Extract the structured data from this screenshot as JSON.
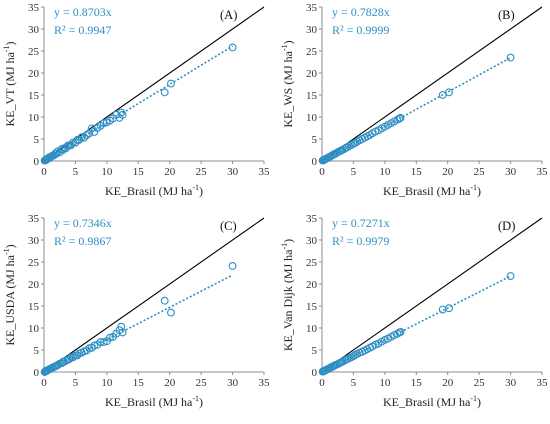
{
  "colors": {
    "marker": "#2E8FC4",
    "trend": "#2E8FC4",
    "identity": "#000000",
    "equation_text": "#2E8FC4"
  },
  "chart_data": [
    {
      "type": "scatter",
      "panel": "(A)",
      "xlabel": "KE_Brasil (MJ ha",
      "ylabel": "KE_VT (MJ ha",
      "unit_sup": "-1",
      "unit_close": ")",
      "xlim": [
        0,
        35
      ],
      "ylim": [
        0,
        35
      ],
      "xticks": [
        0,
        5,
        10,
        15,
        20,
        25,
        30,
        35
      ],
      "yticks": [
        0,
        5,
        10,
        15,
        20,
        25,
        30,
        35
      ],
      "slope": 0.8703,
      "equation": "y = 0.8703x",
      "r2": "R² = 0.9947",
      "grid": false,
      "series": [
        {
          "x": [
            0.1,
            0.2,
            0.3,
            0.4,
            0.5,
            0.6,
            0.8,
            1.0,
            1.2,
            1.4,
            1.6,
            1.8,
            2.0,
            2.2,
            2.5,
            2.8,
            3.0,
            3.2,
            3.5,
            3.8,
            4.0,
            4.3,
            4.6,
            5.0,
            5.3,
            5.6,
            6.0,
            6.4,
            6.8,
            7.2,
            7.6,
            8.0,
            8.5,
            9.0,
            9.5,
            10.0,
            10.5,
            11.0,
            11.5,
            12.0,
            12.3,
            12.5,
            19.2,
            20.2,
            30.0
          ],
          "y": [
            0.1,
            0.2,
            0.2,
            0.4,
            0.4,
            0.5,
            0.8,
            0.8,
            1.1,
            1.2,
            1.3,
            1.7,
            1.7,
            2.2,
            2.0,
            2.7,
            2.5,
            2.9,
            2.9,
            3.5,
            3.5,
            3.6,
            4.2,
            4.2,
            4.8,
            4.8,
            5.4,
            5.3,
            5.9,
            6.3,
            7.4,
            6.6,
            7.5,
            8.0,
            8.6,
            8.8,
            9.2,
            9.7,
            10.5,
            9.8,
            11.0,
            10.5,
            15.6,
            17.6,
            25.8
          ]
        }
      ]
    },
    {
      "type": "scatter",
      "panel": "(B)",
      "xlabel": "KE_Brasil (MJ ha",
      "ylabel": "KE_WS (MJ ha",
      "unit_sup": "-1",
      "unit_close": ")",
      "xlim": [
        0,
        35
      ],
      "ylim": [
        0,
        35
      ],
      "xticks": [
        0,
        5,
        10,
        15,
        20,
        25,
        30,
        35
      ],
      "yticks": [
        0,
        5,
        10,
        15,
        20,
        25,
        30,
        35
      ],
      "slope": 0.7828,
      "equation": "y = 0.7828x",
      "r2": "R² = 0.9999",
      "grid": false,
      "series": [
        {
          "x": [
            0.1,
            0.2,
            0.3,
            0.4,
            0.5,
            0.6,
            0.8,
            1.0,
            1.2,
            1.4,
            1.6,
            1.8,
            2.0,
            2.2,
            2.5,
            2.8,
            3.0,
            3.2,
            3.5,
            3.8,
            4.0,
            4.3,
            4.6,
            5.0,
            5.3,
            5.6,
            6.0,
            6.4,
            6.8,
            7.2,
            7.6,
            8.0,
            8.5,
            9.0,
            9.5,
            10.0,
            10.5,
            11.0,
            11.5,
            12.0,
            12.3,
            12.5,
            19.2,
            20.2,
            30.0
          ],
          "y": [
            0.1,
            0.2,
            0.2,
            0.3,
            0.4,
            0.5,
            0.6,
            0.8,
            0.9,
            1.1,
            1.3,
            1.4,
            1.6,
            1.7,
            2.0,
            2.2,
            2.3,
            2.5,
            2.7,
            3.0,
            3.1,
            3.4,
            3.6,
            3.9,
            4.1,
            4.4,
            4.7,
            5.0,
            5.3,
            5.6,
            5.9,
            6.3,
            6.7,
            7.0,
            7.4,
            7.8,
            8.2,
            8.6,
            9.0,
            9.4,
            9.6,
            9.8,
            15.0,
            15.6,
            23.5
          ]
        }
      ]
    },
    {
      "type": "scatter",
      "panel": "(C)",
      "xlabel": "KE_Brasil (MJ ha",
      "ylabel": "KE_USDA (MJ ha",
      "unit_sup": "-1",
      "unit_close": ")",
      "xlim": [
        0,
        35
      ],
      "ylim": [
        0,
        35
      ],
      "xticks": [
        0,
        5,
        10,
        15,
        20,
        25,
        30,
        35
      ],
      "yticks": [
        0,
        5,
        10,
        15,
        20,
        25,
        30,
        35
      ],
      "slope": 0.7346,
      "equation": "y = 0.7346x",
      "r2": "R² = 0.9867",
      "grid": false,
      "series": [
        {
          "x": [
            0.1,
            0.2,
            0.3,
            0.4,
            0.5,
            0.6,
            0.8,
            1.0,
            1.2,
            1.4,
            1.6,
            1.8,
            2.0,
            2.2,
            2.5,
            2.8,
            3.0,
            3.2,
            3.5,
            3.8,
            4.0,
            4.3,
            4.6,
            5.0,
            5.3,
            5.6,
            6.0,
            6.4,
            6.8,
            7.2,
            7.6,
            8.0,
            8.5,
            9.0,
            9.5,
            10.0,
            10.5,
            11.0,
            11.5,
            12.0,
            12.3,
            12.5,
            19.2,
            20.2,
            30.0
          ],
          "y": [
            0.0,
            0.1,
            0.2,
            0.3,
            0.3,
            0.4,
            0.6,
            0.7,
            0.9,
            1.0,
            1.2,
            1.3,
            1.4,
            1.6,
            1.9,
            2.0,
            2.3,
            2.3,
            2.6,
            2.8,
            2.9,
            3.3,
            3.3,
            3.7,
            3.8,
            4.2,
            4.4,
            4.7,
            4.9,
            5.4,
            5.5,
            6.0,
            6.2,
            6.8,
            6.8,
            7.0,
            7.8,
            8.0,
            8.7,
            9.5,
            10.3,
            9.0,
            16.2,
            13.5,
            24.1
          ]
        }
      ]
    },
    {
      "type": "scatter",
      "panel": "(D)",
      "xlabel": "KE_Brasil (MJ ha",
      "ylabel": "KE_Van Dijk (MJ ha",
      "unit_sup": "-1",
      "unit_close": ")",
      "xlim": [
        0,
        35
      ],
      "ylim": [
        0,
        35
      ],
      "xticks": [
        0,
        5,
        10,
        15,
        20,
        25,
        30,
        35
      ],
      "yticks": [
        0,
        5,
        10,
        15,
        20,
        25,
        30,
        35
      ],
      "slope": 0.7271,
      "equation": "y = 0.7271x",
      "r2": "R² = 0.9979",
      "grid": false,
      "series": [
        {
          "x": [
            0.1,
            0.2,
            0.3,
            0.4,
            0.5,
            0.6,
            0.8,
            1.0,
            1.2,
            1.4,
            1.6,
            1.8,
            2.0,
            2.2,
            2.5,
            2.8,
            3.0,
            3.2,
            3.5,
            3.8,
            4.0,
            4.3,
            4.6,
            5.0,
            5.3,
            5.6,
            6.0,
            6.4,
            6.8,
            7.2,
            7.6,
            8.0,
            8.5,
            9.0,
            9.5,
            10.0,
            10.5,
            11.0,
            11.5,
            12.0,
            12.3,
            12.5,
            19.2,
            20.2,
            30.0
          ],
          "y": [
            0.1,
            0.1,
            0.2,
            0.3,
            0.4,
            0.4,
            0.6,
            0.7,
            0.9,
            1.0,
            1.2,
            1.3,
            1.5,
            1.6,
            1.8,
            2.0,
            2.2,
            2.3,
            2.5,
            2.8,
            2.9,
            3.1,
            3.3,
            3.6,
            3.9,
            4.1,
            4.4,
            4.6,
            4.9,
            5.2,
            5.5,
            5.8,
            6.2,
            6.5,
            6.9,
            7.3,
            7.6,
            8.0,
            8.4,
            8.7,
            9.0,
            9.1,
            14.2,
            14.5,
            21.8
          ]
        }
      ]
    }
  ]
}
